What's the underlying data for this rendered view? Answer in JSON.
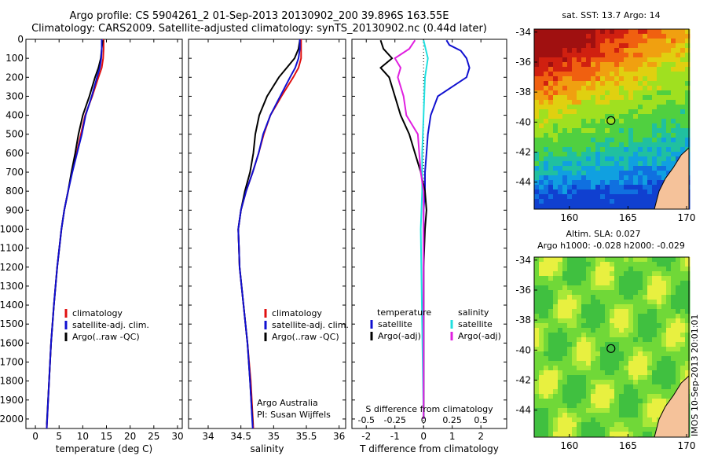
{
  "title": {
    "line1": "Argo profile: CS 5904261_2 01-Sep-2013 20130902_200 39.896S 163.55E",
    "line2": "Climatology: CARS2009. Satellite-adjusted climatology: synTS_20130902.nc (0.44d later)"
  },
  "stamp": "IMOS 10-Sep-2013 20:01:01",
  "colors": {
    "climatology": "#e01010",
    "satellite": "#1010d0",
    "argo": "#000000",
    "sal_satellite": "#20e0e0",
    "sal_argo": "#e020e0",
    "land": "#f5c29a"
  },
  "legend_labels": {
    "climatology": "climatology",
    "satellite": "satellite-adj. clim.",
    "argo": "Argo(..raw -QC)"
  },
  "panel3_legend": {
    "temperature_head": "temperature",
    "salinity_head": "salinity",
    "satellite": "satellite",
    "argo": "Argo(-adj)"
  },
  "credit": {
    "line1": "Argo Australia",
    "line2": "PI: Susan Wijffels"
  },
  "chart_data": [
    {
      "type": "line",
      "xlabel": "temperature (deg C)",
      "xlim": [
        -2,
        31
      ],
      "xticks": [
        0,
        5,
        10,
        15,
        20,
        25,
        30
      ],
      "ylim": [
        2050,
        0
      ],
      "yticks": [
        0,
        100,
        200,
        300,
        400,
        500,
        600,
        700,
        800,
        900,
        1000,
        1100,
        1200,
        1300,
        1400,
        1500,
        1600,
        1700,
        1800,
        1900,
        2000
      ],
      "series": [
        {
          "name": "climatology",
          "y": [
            0,
            50,
            100,
            150,
            200,
            300,
            400,
            500,
            600,
            700,
            800,
            900,
            1000,
            1200,
            1400,
            1600,
            1800,
            2050
          ],
          "x": [
            14.4,
            14.4,
            14.3,
            14.0,
            13.3,
            12.0,
            10.5,
            9.6,
            8.7,
            7.7,
            6.9,
            6.1,
            5.5,
            4.6,
            3.9,
            3.3,
            2.9,
            2.4
          ]
        },
        {
          "name": "satellite-adj. clim.",
          "y": [
            0,
            50,
            100,
            150,
            200,
            300,
            400,
            500,
            600,
            700,
            800,
            900,
            1000,
            1200,
            1400,
            1600,
            1800,
            2050
          ],
          "x": [
            14.0,
            14.0,
            13.9,
            13.6,
            13.0,
            11.9,
            10.6,
            9.8,
            8.8,
            7.8,
            6.9,
            6.1,
            5.5,
            4.6,
            3.9,
            3.3,
            2.9,
            2.4
          ]
        },
        {
          "name": "Argo(..raw -QC)",
          "y": [
            5,
            50,
            100,
            150,
            200,
            300,
            400,
            500,
            600,
            700,
            800,
            900,
            1000,
            1200,
            1400,
            1600,
            1800,
            2030
          ],
          "x": [
            14.2,
            14.0,
            13.8,
            13.3,
            12.6,
            11.4,
            10.0,
            9.1,
            8.4,
            7.6,
            6.9,
            6.1,
            5.5,
            4.6,
            3.9,
            3.3,
            2.9,
            2.4
          ]
        }
      ]
    },
    {
      "type": "line",
      "xlabel": "salinity",
      "xlim": [
        33.7,
        36.1
      ],
      "xticks": [
        34,
        34.5,
        35,
        35.5,
        36
      ],
      "ylim": [
        2050,
        0
      ],
      "series": [
        {
          "name": "climatology",
          "y": [
            0,
            50,
            100,
            150,
            200,
            300,
            400,
            500,
            600,
            700,
            800,
            900,
            1000,
            1100,
            1200,
            1300,
            1400,
            1500,
            1600,
            1800,
            2050
          ],
          "x": [
            35.42,
            35.42,
            35.42,
            35.38,
            35.3,
            35.12,
            34.95,
            34.85,
            34.77,
            34.68,
            34.58,
            34.5,
            34.46,
            34.47,
            34.48,
            34.51,
            34.54,
            34.57,
            34.6,
            34.65,
            34.69
          ]
        },
        {
          "name": "satellite-adj. clim.",
          "y": [
            0,
            50,
            100,
            150,
            200,
            300,
            400,
            500,
            600,
            700,
            800,
            900,
            1000,
            1100,
            1200,
            1300,
            1400,
            1500,
            1600,
            1800,
            2050
          ],
          "x": [
            35.4,
            35.4,
            35.38,
            35.33,
            35.25,
            35.1,
            34.95,
            34.84,
            34.77,
            34.68,
            34.58,
            34.5,
            34.46,
            34.47,
            34.48,
            34.51,
            34.54,
            34.57,
            34.6,
            34.64,
            34.68
          ]
        },
        {
          "name": "Argo(..raw -QC)",
          "y": [
            5,
            50,
            100,
            150,
            200,
            300,
            400,
            500,
            600,
            700,
            800,
            900,
            1000,
            1100,
            1200,
            1300,
            1400,
            1500,
            1600,
            1800,
            2030
          ],
          "x": [
            35.4,
            35.38,
            35.32,
            35.2,
            35.08,
            34.9,
            34.78,
            34.72,
            34.69,
            34.64,
            34.56,
            34.5,
            34.46,
            34.47,
            34.48,
            34.51,
            34.54,
            34.57,
            34.6,
            34.64,
            34.68
          ]
        }
      ]
    },
    {
      "type": "line",
      "xlabel": "T difference from climatology",
      "xlabel_top": "S difference from climatology",
      "xlim": [
        -2.5,
        2.9
      ],
      "xticks": [
        -2,
        -1,
        0,
        1,
        2
      ],
      "xticks_top": [
        {
          "label": "-0.5",
          "t": -2
        },
        {
          "label": "-0.25",
          "t": -1
        },
        {
          "label": "0",
          "t": 0
        },
        {
          "label": "0.25",
          "t": 1
        },
        {
          "label": "0.5",
          "t": 2
        }
      ],
      "ylim": [
        2050,
        0
      ],
      "series": [
        {
          "name": "temperature satellite",
          "y": [
            5,
            30,
            60,
            100,
            150,
            200,
            300,
            400,
            500,
            600,
            700,
            800,
            900,
            1000,
            1200,
            1500,
            2000
          ],
          "x": [
            0.8,
            0.9,
            1.3,
            1.5,
            1.6,
            1.5,
            0.5,
            0.25,
            0.15,
            0.1,
            0.05,
            0.05,
            0.0,
            0.0,
            0.0,
            0.0,
            0.0
          ]
        },
        {
          "name": "temperature Argo(-adj)",
          "y": [
            5,
            50,
            100,
            150,
            200,
            300,
            400,
            500,
            600,
            700,
            800,
            900,
            1000,
            1200,
            1500,
            2000
          ],
          "x": [
            -1.5,
            -1.4,
            -1.1,
            -1.5,
            -1.2,
            -1.0,
            -0.8,
            -0.5,
            -0.3,
            -0.1,
            0.05,
            0.1,
            0.05,
            0.0,
            0.0,
            0.0
          ]
        },
        {
          "name": "salinity satellite",
          "y": [
            5,
            100,
            200,
            400,
            600,
            800,
            1000,
            1500,
            2000
          ],
          "x": [
            0.0,
            0.15,
            0.05,
            0.0,
            -0.05,
            -0.05,
            -0.1,
            -0.05,
            0.0
          ]
        },
        {
          "name": "salinity Argo(-adj)",
          "y": [
            5,
            50,
            100,
            150,
            200,
            300,
            400,
            500,
            600,
            700,
            800,
            1000,
            1500,
            2000
          ],
          "x": [
            -0.3,
            -0.5,
            -1.0,
            -0.8,
            -0.9,
            -0.7,
            -0.6,
            -0.2,
            -0.15,
            -0.1,
            0.0,
            0.0,
            0.0,
            0.0
          ]
        }
      ]
    }
  ],
  "maps": [
    {
      "title": "sat. SST: 13.7 Argo: 14",
      "yticks": [
        -34,
        -36,
        -38,
        -40,
        -42,
        -44
      ],
      "xticks": [
        160,
        165,
        170
      ],
      "ylim": [
        -45.8,
        -33.8
      ],
      "xlim": [
        157,
        170.2
      ],
      "profile_location": {
        "lon": 163.55,
        "lat": -39.896
      }
    },
    {
      "title": "Altim. SLA: 0.027",
      "subtitle": "Argo h1000: -0.028 h2000: -0.029",
      "yticks": [
        -34,
        -36,
        -38,
        -40,
        -42,
        -44
      ],
      "xticks": [
        160,
        165,
        170
      ],
      "ylim": [
        -45.8,
        -33.8
      ],
      "xlim": [
        157,
        170.2
      ],
      "profile_location": {
        "lon": 163.55,
        "lat": -39.896
      }
    }
  ]
}
